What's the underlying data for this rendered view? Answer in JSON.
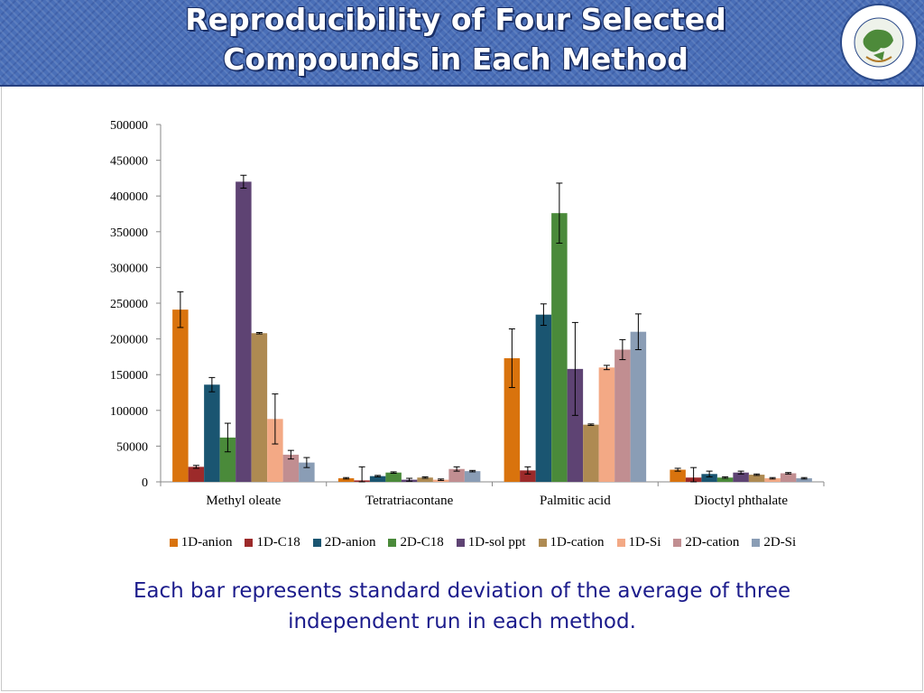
{
  "header": {
    "title": "Reproducibility of Four Selected\nCompounds in Each Method",
    "logo_text": "INTERNATIONAL CENTRE FOR CHEMICAL SCIENCES",
    "logo_subtext": "UNIVERSITY OF KARACHI"
  },
  "caption": "Each bar represents standard deviation of the average of three independent run in each method.",
  "chart_data": {
    "type": "bar",
    "title": "",
    "xlabel": "",
    "ylabel": "",
    "ylim": [
      0,
      500000
    ],
    "yticks": [
      0,
      50000,
      100000,
      150000,
      200000,
      250000,
      300000,
      350000,
      400000,
      450000,
      500000
    ],
    "grid": false,
    "legend": "bottom",
    "categories": [
      "Methyl oleate",
      "Tetratriacontane",
      "Palmitic acid",
      "Dioctyl phthalate"
    ],
    "series": [
      {
        "name": "1D-anion",
        "color": "#d9730d",
        "values": [
          241000,
          5000,
          173000,
          17000
        ],
        "errors": [
          25000,
          1000,
          41000,
          2000
        ]
      },
      {
        "name": "1D-C18",
        "color": "#9c2a2a",
        "values": [
          21000,
          2000,
          16000,
          6000
        ],
        "errors": [
          2000,
          19000,
          5000,
          14000
        ]
      },
      {
        "name": "2D-anion",
        "color": "#1a5571",
        "values": [
          136000,
          8000,
          234000,
          11000
        ],
        "errors": [
          10000,
          1000,
          15000,
          4000
        ]
      },
      {
        "name": "2D-C18",
        "color": "#4a8a3a",
        "values": [
          62000,
          13000,
          376000,
          6000
        ],
        "errors": [
          20000,
          1000,
          42000,
          1000
        ]
      },
      {
        "name": "1D-sol ppt",
        "color": "#5e4373",
        "values": [
          420000,
          3000,
          158000,
          13000
        ],
        "errors": [
          9000,
          2000,
          65000,
          2000
        ]
      },
      {
        "name": "1D-cation",
        "color": "#ae8a52",
        "values": [
          208000,
          6000,
          80000,
          10000
        ],
        "errors": [
          1000,
          1000,
          1000,
          1000
        ]
      },
      {
        "name": "1D-Si",
        "color": "#f3a985",
        "values": [
          88000,
          3000,
          160000,
          5000
        ],
        "errors": [
          35000,
          1000,
          3000,
          1000
        ]
      },
      {
        "name": "2D-cation",
        "color": "#c18e91",
        "values": [
          38000,
          18000,
          185000,
          12000
        ],
        "errors": [
          6000,
          3000,
          14000,
          1000
        ]
      },
      {
        "name": "2D-Si",
        "color": "#8a9db5",
        "values": [
          27000,
          15000,
          210000,
          5000
        ],
        "errors": [
          7000,
          1000,
          25000,
          1000
        ]
      }
    ]
  }
}
